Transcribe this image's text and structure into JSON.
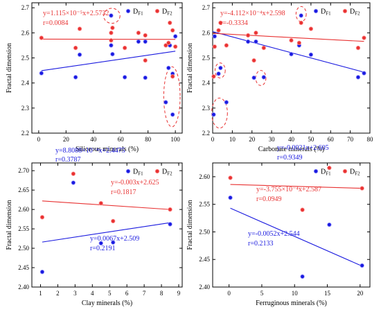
{
  "colors": {
    "DF1": "#1a1adf",
    "DF2": "#e83232",
    "ellipse": "#e83232"
  },
  "chart_data": [
    {
      "type": "scatter",
      "xlabel": "Siliceous minerals (%)",
      "ylabel": "Fractal dimension",
      "xlim": [
        -5,
        105
      ],
      "ylim": [
        2.2,
        2.72
      ],
      "xticks": [
        0,
        20,
        40,
        60,
        80,
        100
      ],
      "yticks": [
        2.2,
        2.3,
        2.4,
        2.5,
        2.6,
        2.7
      ],
      "legend_position": "top-right",
      "series": [
        {
          "name": "DF1",
          "label_main": "D",
          "label_sub": "F1",
          "x": [
            2,
            27,
            30,
            53,
            53,
            54,
            63,
            73,
            78,
            78,
            93,
            95,
            96,
            98,
            98,
            100
          ],
          "y": [
            2.439,
            2.423,
            2.513,
            2.669,
            2.55,
            2.515,
            2.423,
            2.565,
            2.565,
            2.421,
            2.323,
            2.46,
            2.55,
            2.437,
            2.274,
            2.586
          ]
        },
        {
          "name": "DF2",
          "label_main": "D",
          "label_sub": "F2",
          "x": [
            2,
            27,
            30,
            53,
            53,
            54,
            63,
            73,
            78,
            78,
            93,
            95,
            96,
            98,
            98,
            100
          ],
          "y": [
            2.58,
            2.54,
            2.616,
            2.6,
            2.57,
            2.62,
            2.54,
            2.6,
            2.59,
            2.49,
            2.55,
            2.56,
            2.64,
            2.61,
            2.426,
            2.545
          ]
        }
      ],
      "fits": [
        {
          "series": "DF1",
          "x": [
            2,
            100
          ],
          "y": [
            2.449,
            2.527
          ],
          "equation": "y=8.8088×10⁻⁴x+2.4475",
          "r": "r=0.3787"
        },
        {
          "series": "DF2",
          "x": [
            2,
            100
          ],
          "y": [
            2.575,
            2.574
          ],
          "equation": "y=1.115×10⁻⁵x+2.5732",
          "r": "r=0.0084"
        }
      ],
      "ellipses": [
        {
          "cx": 53.5,
          "cy": 2.668,
          "rx": 6,
          "ry": 0.03
        },
        {
          "cx": 97.5,
          "cy": 2.345,
          "rx": 6,
          "ry": 0.12
        }
      ]
    },
    {
      "type": "scatter",
      "xlabel": "Carbonate minerals (%)",
      "ylabel": "Fractal dimension",
      "xlim": [
        0,
        80
      ],
      "ylim": [
        2.2,
        2.72
      ],
      "xticks": [
        0,
        10,
        20,
        30,
        40,
        50,
        60,
        70,
        80
      ],
      "yticks": [
        2.2,
        2.3,
        2.4,
        2.5,
        2.6,
        2.7
      ],
      "legend_position": "top-right",
      "series": [
        {
          "name": "DF1",
          "label_main": "D",
          "label_sub": "F1",
          "x": [
            0.5,
            1,
            3,
            4,
            7,
            18,
            21,
            22,
            26,
            40,
            44,
            45,
            50,
            74,
            77
          ],
          "y": [
            2.274,
            2.586,
            2.437,
            2.46,
            2.323,
            2.565,
            2.421,
            2.565,
            2.423,
            2.515,
            2.55,
            2.669,
            2.513,
            2.423,
            2.439
          ]
        },
        {
          "name": "DF2",
          "label_main": "D",
          "label_sub": "F2",
          "x": [
            0.5,
            1,
            3,
            4,
            7,
            18,
            21,
            22,
            26,
            40,
            44,
            45,
            50,
            74,
            77
          ],
          "y": [
            2.426,
            2.545,
            2.61,
            2.64,
            2.55,
            2.59,
            2.49,
            2.6,
            2.54,
            2.57,
            2.56,
            2.64,
            2.616,
            2.54,
            2.58
          ]
        }
      ],
      "fits": [
        {
          "series": "DF1",
          "x": [
            0,
            77
          ],
          "y": [
            2.605,
            2.443
          ],
          "equation": "y=-0.0021x+2.605",
          "r": "r=0.9349"
        },
        {
          "series": "DF2",
          "x": [
            0,
            77
          ],
          "y": [
            2.598,
            2.566
          ],
          "equation": "y=-4.112×10⁻⁴x+2.598",
          "r": "r=-0.3334"
        }
      ],
      "ellipses": [
        {
          "cx": 45,
          "cy": 2.675,
          "rx": 2.6,
          "ry": 0.03
        },
        {
          "cx": 3.8,
          "cy": 2.45,
          "rx": 2.6,
          "ry": 0.03
        },
        {
          "cx": 24.5,
          "cy": 2.42,
          "rx": 2.6,
          "ry": 0.03
        },
        {
          "cx": 3.5,
          "cy": 2.28,
          "rx": 4.0,
          "ry": 0.06
        }
      ]
    },
    {
      "type": "scatter",
      "xlabel": "Clay minerals (%)",
      "ylabel": "Fractal dimension",
      "xlim": [
        0.5,
        9.2
      ],
      "ylim": [
        2.4,
        2.72
      ],
      "xticks": [
        1,
        2,
        3,
        4,
        5,
        6,
        7,
        8,
        9
      ],
      "yticks": [
        2.4,
        2.45,
        2.5,
        2.55,
        2.6,
        2.65,
        2.7
      ],
      "yticklabels": [
        "2.40",
        "2.45",
        "2.50",
        "2.55",
        "2.60",
        "2.65",
        "2.70"
      ],
      "legend_position": "top-right",
      "series": [
        {
          "name": "DF1",
          "label_main": "D",
          "label_sub": "F1",
          "x": [
            1.1,
            2.9,
            4.5,
            5.2,
            8.5
          ],
          "y": [
            2.439,
            2.669,
            2.513,
            2.515,
            2.562
          ]
        },
        {
          "name": "DF2",
          "label_main": "D",
          "label_sub": "F2",
          "x": [
            1.1,
            2.9,
            4.5,
            5.2,
            8.5
          ],
          "y": [
            2.58,
            2.692,
            2.616,
            2.57,
            2.6
          ]
        }
      ],
      "fits": [
        {
          "series": "DF1",
          "x": [
            1.1,
            8.5
          ],
          "y": [
            2.516,
            2.566
          ],
          "equation": "y=0.0067x+2.509",
          "r": "r=0.2191"
        },
        {
          "series": "DF2",
          "x": [
            1.1,
            8.5
          ],
          "y": [
            2.622,
            2.6
          ],
          "equation": "y=-0.003x+2.625",
          "r": "r=0.1817"
        }
      ]
    },
    {
      "type": "scatter",
      "xlabel": "Ferruginous minerals (%)",
      "ylabel": "Fractal dimension",
      "xlim": [
        -2.5,
        21.5
      ],
      "ylim": [
        2.4,
        2.625
      ],
      "xticks": [
        0,
        5,
        10,
        15,
        20
      ],
      "yticks": [
        2.4,
        2.45,
        2.5,
        2.55,
        2.6
      ],
      "yticklabels": [
        "2.40",
        "2.45",
        "2.50",
        "2.55",
        "2.60"
      ],
      "legend_position": "top-right",
      "series": [
        {
          "name": "DF1",
          "label_main": "D",
          "label_sub": "F1",
          "x": [
            0.2,
            11.2,
            15.3,
            20.3
          ],
          "y": [
            2.562,
            2.419,
            2.513,
            2.439
          ]
        },
        {
          "name": "DF2",
          "label_main": "D",
          "label_sub": "F2",
          "x": [
            0.2,
            11.2,
            15.3,
            20.3
          ],
          "y": [
            2.598,
            2.54,
            2.616,
            2.579
          ]
        }
      ],
      "fits": [
        {
          "series": "DF1",
          "x": [
            0.2,
            20.3
          ],
          "y": [
            2.543,
            2.438
          ],
          "equation": "y=-0.0052x+2.544",
          "r": "r=0.2133"
        },
        {
          "series": "DF2",
          "x": [
            0.2,
            20.3
          ],
          "y": [
            2.586,
            2.579
          ],
          "equation": "y=-3.755×10⁻⁴x+2.587",
          "r": "r=0.0949"
        }
      ]
    }
  ]
}
